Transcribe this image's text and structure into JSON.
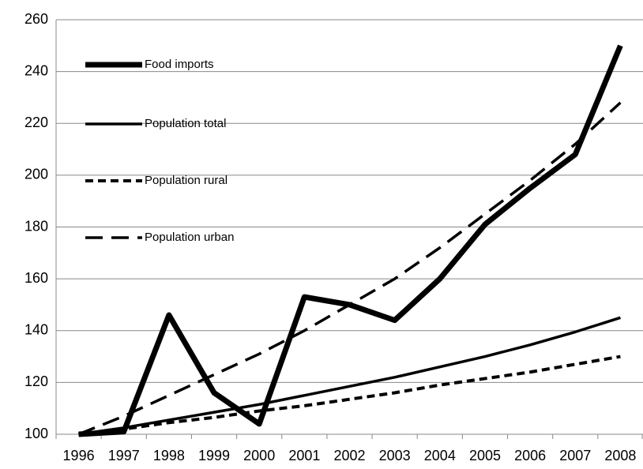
{
  "chart_data": {
    "type": "line",
    "categories": [
      "1996",
      "1997",
      "1998",
      "1999",
      "2000",
      "2001",
      "2002",
      "2003",
      "2004",
      "2005",
      "2006",
      "2007",
      "2008"
    ],
    "series": [
      {
        "name": "Food imports",
        "color": "#000000",
        "dash": "solid",
        "values": [
          100,
          101,
          146,
          116,
          104,
          153,
          150,
          144,
          160,
          181,
          195,
          208,
          250
        ]
      },
      {
        "name": "Population total",
        "color": "#000000",
        "dash": "solid",
        "values": [
          100,
          102.5,
          105.5,
          108.5,
          111.5,
          115,
          118.5,
          122,
          126,
          130,
          134.5,
          139.5,
          145
        ]
      },
      {
        "name": "Population rural",
        "color": "#000000",
        "dash": "short",
        "values": [
          100,
          102,
          104.5,
          106.5,
          109,
          111,
          113.5,
          116,
          119,
          121.5,
          124,
          127,
          130
        ]
      },
      {
        "name": "Population urban",
        "color": "#000000",
        "dash": "long",
        "values": [
          100,
          107,
          115,
          123,
          131,
          140,
          150,
          160,
          172,
          185,
          198,
          212,
          228
        ]
      }
    ],
    "ylim": [
      100,
      260
    ],
    "yticks": [
      100,
      120,
      140,
      160,
      180,
      200,
      220,
      240,
      260
    ],
    "grid": true,
    "legend": "upper left"
  }
}
